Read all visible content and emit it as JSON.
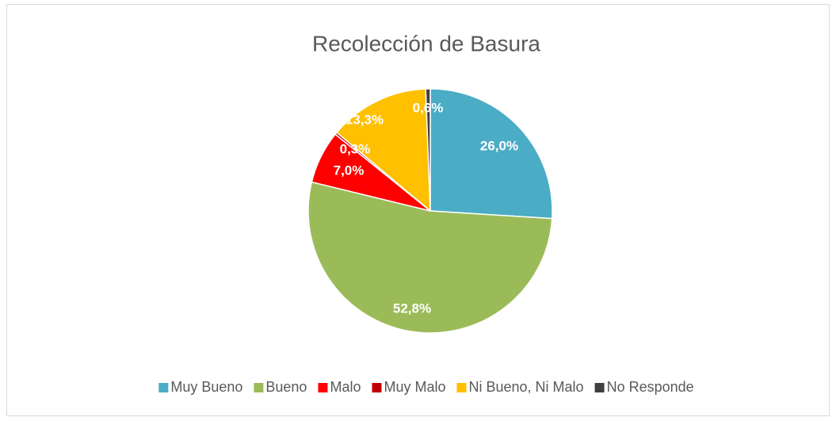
{
  "chart_data": {
    "type": "pie",
    "title": "Recolección de Basura",
    "categories": [
      "Muy Bueno",
      "Bueno",
      "Malo",
      "Muy Malo",
      "Ni Bueno, Ni Malo",
      "No Responde"
    ],
    "values": [
      26.0,
      52.8,
      7.0,
      0.3,
      13.3,
      0.6
    ],
    "value_labels": [
      "26,0%",
      "52,8%",
      "7,0%",
      "0,3%",
      "13,3%",
      "0,6%"
    ],
    "colors": [
      "#4bacc6",
      "#9bbb59",
      "#ff0000",
      "#c00000",
      "#ffc000",
      "#404040"
    ],
    "legend": "bottom"
  }
}
